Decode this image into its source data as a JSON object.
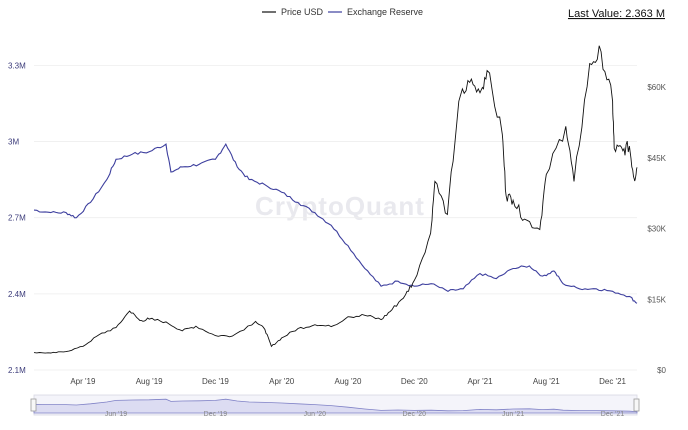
{
  "legend": {
    "price_label": "Price USD",
    "reserve_label": "Exchange Reserve",
    "last_value": "Last Value: 2.363 M"
  },
  "watermark": "CryptoQuant",
  "colors": {
    "price": "#111111",
    "reserve": "#3d3f9e",
    "grid": "#eeeeee",
    "navigator_fill": "#dcdcf2",
    "navigator_line": "#7f81c6"
  },
  "chart_data": {
    "type": "line",
    "x_range": [
      "2019-01-01",
      "2022-01-15"
    ],
    "left_axis": {
      "series": "Exchange Reserve",
      "ylim": [
        2100000,
        3400000
      ],
      "ticks": [
        2100000,
        2400000,
        2700000,
        3000000,
        3300000
      ],
      "tick_labels": [
        "2.1M",
        "2.4M",
        "2.7M",
        "3M",
        "3.3M"
      ]
    },
    "right_axis": {
      "series": "Price USD",
      "ylim": [
        0,
        70000
      ],
      "ticks": [
        0,
        15000,
        30000,
        45000,
        60000
      ],
      "tick_labels": [
        "$0",
        "$15K",
        "$30K",
        "$45K",
        "$60K"
      ]
    },
    "x_ticks": [
      {
        "date": "2019-04-01",
        "label": "Apr '19"
      },
      {
        "date": "2019-08-01",
        "label": "Aug '19"
      },
      {
        "date": "2019-12-01",
        "label": "Dec '19"
      },
      {
        "date": "2020-04-01",
        "label": "Apr '20"
      },
      {
        "date": "2020-08-01",
        "label": "Aug '20"
      },
      {
        "date": "2020-12-01",
        "label": "Dec '20"
      },
      {
        "date": "2021-04-01",
        "label": "Apr '21"
      },
      {
        "date": "2021-08-01",
        "label": "Aug '21"
      },
      {
        "date": "2021-12-01",
        "label": "Dec '21"
      }
    ],
    "navigator_ticks": [
      "Jun '19",
      "Dec '19",
      "Jun '20",
      "Dec '20",
      "Jun '21",
      "Dec '21"
    ],
    "series": [
      {
        "name": "Price USD",
        "axis": "right",
        "points": [
          [
            "2019-01-01",
            3700
          ],
          [
            "2019-02-01",
            3600
          ],
          [
            "2019-03-01",
            3900
          ],
          [
            "2019-04-01",
            5000
          ],
          [
            "2019-05-01",
            7500
          ],
          [
            "2019-06-01",
            9000
          ],
          [
            "2019-06-26",
            12500
          ],
          [
            "2019-07-15",
            10500
          ],
          [
            "2019-08-01",
            10800
          ],
          [
            "2019-09-01",
            10200
          ],
          [
            "2019-10-01",
            8300
          ],
          [
            "2019-10-26",
            9300
          ],
          [
            "2019-12-01",
            7300
          ],
          [
            "2020-01-01",
            7200
          ],
          [
            "2020-02-13",
            10300
          ],
          [
            "2020-03-01",
            8600
          ],
          [
            "2020-03-13",
            5000
          ],
          [
            "2020-04-01",
            6800
          ],
          [
            "2020-05-01",
            8800
          ],
          [
            "2020-06-01",
            9600
          ],
          [
            "2020-07-01",
            9200
          ],
          [
            "2020-08-01",
            11300
          ],
          [
            "2020-09-01",
            11600
          ],
          [
            "2020-10-01",
            10700
          ],
          [
            "2020-10-21",
            12800
          ],
          [
            "2020-11-15",
            16000
          ],
          [
            "2020-12-01",
            19000
          ],
          [
            "2020-12-31",
            29000
          ],
          [
            "2021-01-08",
            40000
          ],
          [
            "2021-01-31",
            33000
          ],
          [
            "2021-02-21",
            57000
          ],
          [
            "2021-03-13",
            61000
          ],
          [
            "2021-04-01",
            58800
          ],
          [
            "2021-04-14",
            63500
          ],
          [
            "2021-05-12",
            50000
          ],
          [
            "2021-05-19",
            37000
          ],
          [
            "2021-06-01",
            36000
          ],
          [
            "2021-06-22",
            32000
          ],
          [
            "2021-07-20",
            29800
          ],
          [
            "2021-08-01",
            41500
          ],
          [
            "2021-09-06",
            51700
          ],
          [
            "2021-09-21",
            40000
          ],
          [
            "2021-10-20",
            65000
          ],
          [
            "2021-11-10",
            67500
          ],
          [
            "2021-12-01",
            57000
          ],
          [
            "2021-12-04",
            47000
          ],
          [
            "2021-12-20",
            46500
          ],
          [
            "2022-01-01",
            47500
          ],
          [
            "2022-01-10",
            40500
          ],
          [
            "2022-01-15",
            43000
          ]
        ]
      },
      {
        "name": "Exchange Reserve",
        "axis": "left",
        "points": [
          [
            "2019-01-01",
            2730000
          ],
          [
            "2019-02-01",
            2720000
          ],
          [
            "2019-03-01",
            2720000
          ],
          [
            "2019-03-20",
            2700000
          ],
          [
            "2019-04-15",
            2760000
          ],
          [
            "2019-05-15",
            2850000
          ],
          [
            "2019-06-01",
            2930000
          ],
          [
            "2019-07-01",
            2950000
          ],
          [
            "2019-08-01",
            2960000
          ],
          [
            "2019-09-01",
            2990000
          ],
          [
            "2019-09-10",
            2880000
          ],
          [
            "2019-10-01",
            2900000
          ],
          [
            "2019-11-01",
            2910000
          ],
          [
            "2019-12-01",
            2930000
          ],
          [
            "2019-12-20",
            2990000
          ],
          [
            "2020-01-10",
            2900000
          ],
          [
            "2020-02-01",
            2850000
          ],
          [
            "2020-03-01",
            2830000
          ],
          [
            "2020-04-01",
            2800000
          ],
          [
            "2020-05-01",
            2760000
          ],
          [
            "2020-06-01",
            2720000
          ],
          [
            "2020-07-01",
            2670000
          ],
          [
            "2020-08-01",
            2590000
          ],
          [
            "2020-09-01",
            2500000
          ],
          [
            "2020-10-01",
            2430000
          ],
          [
            "2020-11-01",
            2450000
          ],
          [
            "2020-12-01",
            2430000
          ],
          [
            "2021-01-01",
            2440000
          ],
          [
            "2021-02-01",
            2410000
          ],
          [
            "2021-03-01",
            2420000
          ],
          [
            "2021-04-01",
            2480000
          ],
          [
            "2021-05-01",
            2460000
          ],
          [
            "2021-06-01",
            2500000
          ],
          [
            "2021-07-01",
            2510000
          ],
          [
            "2021-07-25",
            2470000
          ],
          [
            "2021-08-15",
            2490000
          ],
          [
            "2021-09-01",
            2440000
          ],
          [
            "2021-10-01",
            2420000
          ],
          [
            "2021-11-01",
            2420000
          ],
          [
            "2021-12-01",
            2410000
          ],
          [
            "2022-01-01",
            2390000
          ],
          [
            "2022-01-15",
            2363000
          ]
        ]
      }
    ]
  }
}
